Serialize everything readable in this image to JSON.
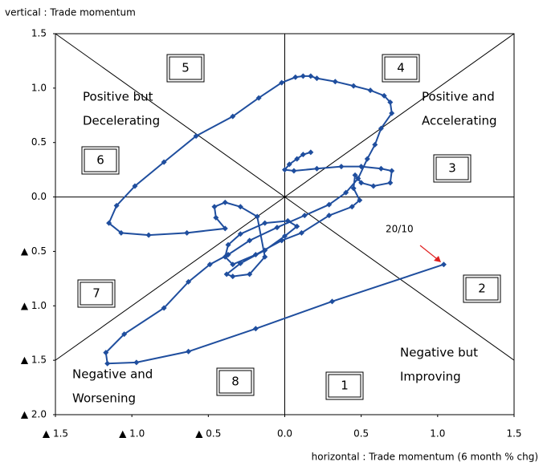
{
  "chart_data": {
    "type": "line",
    "y_label": "vertical : Trade momentum",
    "x_label": "horizontal : Trade momentum (6 month % chg)",
    "xlim": [
      -1.5,
      1.5
    ],
    "ylim": [
      -2.0,
      1.5
    ],
    "xticks": [
      {
        "value": -1.5,
        "label": "▲ 1.5"
      },
      {
        "value": -1,
        "label": "▲ 1.0"
      },
      {
        "value": -0.5,
        "label": "▲ 0.5"
      },
      {
        "value": 0,
        "label": "0.0"
      },
      0.5,
      {
        "value": 1,
        "label": "1.0"
      },
      1.5
    ],
    "yticks": [
      1.5,
      {
        "value": 1,
        "label": "1.0"
      },
      0.5,
      {
        "value": 0,
        "label": "0.0"
      },
      {
        "value": -0.5,
        "label": "▲ 0.5"
      },
      {
        "value": -1,
        "label": "▲ 1.0"
      },
      {
        "value": -1.5,
        "label": "▲ 1.5"
      },
      {
        "value": -2,
        "label": "▲ 2.0"
      }
    ],
    "grid": false,
    "x": [
      0.17,
      0.12,
      0.08,
      0.03,
      0.0,
      0.06,
      0.21,
      0.37,
      0.5,
      0.63,
      0.7,
      0.69,
      0.58,
      0.5,
      0.46,
      0.45,
      0.49,
      0.44,
      0.29,
      0.11,
      -0.02,
      -0.19,
      -0.34,
      -0.39,
      -0.37,
      -0.29,
      -0.13,
      0.02,
      0.08,
      0.0,
      -0.13,
      -0.29,
      -0.38,
      -0.34,
      -0.23,
      -0.13,
      -0.18,
      -0.29,
      -0.39,
      -0.46,
      -0.45,
      -0.39,
      -0.64,
      -0.89,
      -1.07,
      -1.15,
      -1.1,
      -0.98,
      -0.79,
      -0.58,
      -0.34,
      -0.17,
      -0.02,
      0.07,
      0.12,
      0.17,
      0.21,
      0.33,
      0.45,
      0.56,
      0.65,
      0.69,
      0.7,
      0.63,
      0.59,
      0.54,
      0.48,
      0.4,
      0.29,
      0.13,
      -0.05,
      -0.23,
      -0.37,
      -0.49,
      -0.63,
      -0.79,
      -1.05,
      -1.17,
      -1.16,
      -0.97,
      -0.63,
      -0.19,
      0.31,
      1.04
    ],
    "series": [
      {
        "color": "#1f4e9e",
        "values": [
          0.41,
          0.39,
          0.35,
          0.3,
          0.25,
          0.24,
          0.26,
          0.28,
          0.28,
          0.26,
          0.24,
          0.13,
          0.1,
          0.13,
          0.2,
          0.08,
          -0.03,
          -0.09,
          -0.17,
          -0.33,
          -0.4,
          -0.53,
          -0.62,
          -0.55,
          -0.44,
          -0.34,
          -0.24,
          -0.22,
          -0.27,
          -0.36,
          -0.49,
          -0.61,
          -0.71,
          -0.73,
          -0.71,
          -0.55,
          -0.18,
          -0.09,
          -0.05,
          -0.09,
          -0.19,
          -0.29,
          -0.33,
          -0.35,
          -0.33,
          -0.24,
          -0.08,
          0.1,
          0.32,
          0.56,
          0.74,
          0.91,
          1.05,
          1.1,
          1.11,
          1.11,
          1.09,
          1.06,
          1.02,
          0.98,
          0.93,
          0.87,
          0.77,
          0.63,
          0.48,
          0.35,
          0.17,
          0.04,
          -0.07,
          -0.17,
          -0.28,
          -0.4,
          -0.53,
          -0.62,
          -0.78,
          -1.02,
          -1.26,
          -1.43,
          -1.53,
          -1.52,
          -1.42,
          -1.21,
          -0.96,
          -0.62
        ]
      }
    ],
    "annotation": {
      "text": "20/10",
      "color": "#e02020"
    },
    "zones": [
      {
        "number": "1",
        "lines": [
          "Negative but",
          "Improving"
        ]
      },
      {
        "number": "2"
      },
      {
        "number": "3",
        "lines": [
          "Positive and",
          "Accelerating"
        ]
      },
      {
        "number": "4"
      },
      {
        "number": "5",
        "lines": [
          "Positive but",
          "Decelerating"
        ]
      },
      {
        "number": "6"
      },
      {
        "number": "7",
        "lines": [
          "Negative and",
          "Worsening"
        ]
      },
      {
        "number": "8"
      }
    ]
  }
}
